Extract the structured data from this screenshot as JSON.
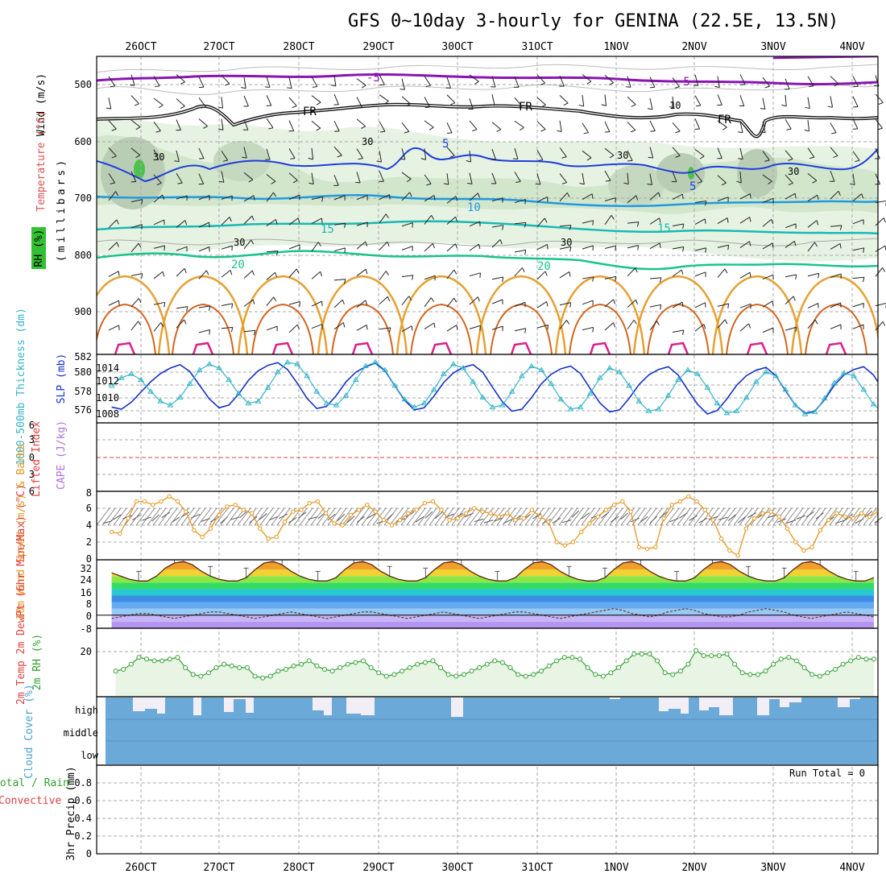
{
  "title": "GFS 0~10day 3-hourly for GENINA (22.5E, 13.5N)",
  "dates": [
    "26OCT",
    "27OCT",
    "28OCT",
    "29OCT",
    "30OCT",
    "31OCT",
    "1NOV",
    "2NOV",
    "3NOV",
    "4NOV"
  ],
  "colors": {
    "frame": "#000000",
    "purple": "#8a14b4",
    "blue": "#1e3fdc",
    "lightblue": "#1e9be0",
    "teal": "#19b9b4",
    "green20": "#19c38c",
    "orange": "#e6a032",
    "darkorange": "#d2641e",
    "magenta": "#dc1e8c",
    "cyan": "#32b4c8",
    "slpblue": "#1432c8",
    "windorange": "#e6961e",
    "rh": "#32a032",
    "cloud": "#6aa9d8",
    "cloudhigh": "#f2eef6"
  },
  "panels": {
    "profile": {
      "ylabel_wind": "Wind (m/s)",
      "ylabel_temp": "Temperature (°C)",
      "ylabel_rh": "RH (%)",
      "ylabel_units": "(millibars)",
      "ticks": [
        "500",
        "600",
        "700",
        "800",
        "900"
      ],
      "contour_labels": [
        "-5",
        "-5",
        "FR",
        "FR",
        "FR",
        "5",
        "5",
        "10",
        "15",
        "15",
        "20",
        "20",
        "30",
        "30",
        "30",
        "10",
        "30",
        "30",
        "30"
      ]
    },
    "slp": {
      "ylabel_thk": "1000-500mb Thickness (dm)",
      "ylabel_slp": "SLP (mb)",
      "ticks_left": [
        "582",
        "580",
        "578",
        "576"
      ],
      "ticks_right": [
        "1014",
        "1012",
        "1010",
        "1008"
      ]
    },
    "cape": {
      "ylabel_li": "Lifted Index",
      "ylabel_cape": "CAPE (J/kg)",
      "ticks": [
        "6",
        "3",
        "0",
        "3",
        "6"
      ]
    },
    "wind10": {
      "ylabel": "10m Wind Speed (m/s) & Barbs",
      "ticks": [
        "8",
        "6",
        "4",
        "2",
        "0"
      ]
    },
    "temp2m": {
      "ylabel": "2m Temp 2m DewPt (6hr Min/Max) (°C)",
      "ticks": [
        "32",
        "24",
        "16",
        "8",
        "0",
        "-8"
      ]
    },
    "rh2m": {
      "ylabel": "2m RH (%)",
      "ticks": [
        "20"
      ]
    },
    "cloud": {
      "ylabel": "Cloud Cover (%)",
      "levels": [
        "high",
        "middle",
        "low"
      ]
    },
    "precip": {
      "ylabel_total": "Total / Rain",
      "ylabel_conv": "Convective",
      "ylabel_units": "3hr Precip (mm)",
      "ticks": [
        "0.8",
        "0.6",
        "0.4",
        "0.2",
        "0"
      ],
      "run_total": "Run Total = 0"
    }
  },
  "chart_data": [
    {
      "type": "line",
      "title": "GFS 0~10day 3-hourly for GENINA (22.5E, 13.5N)",
      "panel": "sea level pressure and 1000-500mb thickness",
      "x_start": "25OCT 15Z",
      "x_step_hours": 3,
      "series": [
        {
          "name": "SLP (mb)",
          "values": [
            1008.3,
            1008.0,
            1009.0,
            1010.5,
            1012.0,
            1013.2,
            1014.0,
            1014.5,
            1013.5,
            1011.5,
            1009.5,
            1008.2,
            1008.6,
            1010.2,
            1012.2,
            1013.6,
            1014.4,
            1014.8,
            1013.8,
            1011.8,
            1009.6,
            1008.1,
            1008.4,
            1010.0,
            1012.0,
            1013.4,
            1014.2,
            1014.7,
            1013.6,
            1011.4,
            1009.3,
            1007.9,
            1008.2,
            1009.9,
            1011.9,
            1013.3,
            1014.1,
            1014.5,
            1013.4,
            1011.2,
            1009.1,
            1007.7,
            1008.0,
            1009.7,
            1011.7,
            1013.1,
            1013.9,
            1014.3,
            1013.2,
            1011.0,
            1008.9,
            1007.6,
            1007.9,
            1009.6,
            1011.6,
            1013.0,
            1013.8,
            1014.2,
            1013.0,
            1010.8,
            1008.7,
            1007.3,
            1007.8,
            1009.5,
            1011.5,
            1012.9,
            1013.7,
            1014.1,
            1012.9,
            1010.7,
            1008.6,
            1007.4,
            1007.7,
            1009.4,
            1011.5,
            1013.0,
            1013.8,
            1014.2,
            1013.0,
            1010.8,
            1008.7,
            1007.5,
            1007.9,
            1009.6,
            1011.8,
            1013.3,
            1014.1,
            1014.6
          ]
        },
        {
          "name": "1000-500mb Thickness (dm)",
          "values": [
            578.8,
            579.6,
            580.0,
            579.4,
            578.2,
            577.2,
            576.8,
            577.6,
            579.0,
            580.4,
            581.0,
            580.6,
            579.4,
            578.0,
            577.0,
            577.2,
            578.6,
            580.2,
            581.2,
            581.0,
            579.8,
            578.2,
            577.0,
            576.8,
            577.8,
            579.4,
            580.8,
            581.2,
            580.4,
            578.8,
            577.4,
            576.6,
            577.0,
            578.4,
            580.0,
            581.0,
            580.6,
            579.2,
            577.6,
            576.6,
            576.8,
            578.2,
            579.8,
            580.8,
            580.4,
            579.0,
            577.4,
            576.4,
            576.6,
            578.0,
            579.6,
            580.6,
            580.2,
            578.8,
            577.2,
            576.2,
            576.4,
            577.8,
            579.4,
            580.4,
            580.0,
            578.6,
            577.0,
            576.0,
            576.2,
            577.6,
            579.2,
            580.2,
            579.8,
            578.4,
            576.8,
            575.9,
            576.1,
            577.5,
            579.1,
            580.1,
            579.8,
            578.4,
            576.9,
            576.0,
            576.3,
            577.7,
            579.3,
            580.3,
            579.9,
            578.6,
            577.1,
            576.3
          ]
        }
      ],
      "ylim": [
        575,
        582
      ]
    },
    {
      "type": "line",
      "panel": "10m wind speed",
      "series": [
        {
          "name": "10m Wind Speed (m/s)",
          "values": [
            3.2,
            3.0,
            4.8,
            6.8,
            6.8,
            6.4,
            6.8,
            7.4,
            6.8,
            5.6,
            3.4,
            2.6,
            3.6,
            5.2,
            6.2,
            6.4,
            5.8,
            5.4,
            3.6,
            2.4,
            2.6,
            4.4,
            5.6,
            5.8,
            6.6,
            6.8,
            5.4,
            4.2,
            4.0,
            5.2,
            5.8,
            6.4,
            5.6,
            4.6,
            4.0,
            4.6,
            5.4,
            5.8,
            6.6,
            6.8,
            5.8,
            4.6,
            4.8,
            5.4,
            6.0,
            5.6,
            5.4,
            5.0,
            5.4,
            4.6,
            4.8,
            5.8,
            5.0,
            4.4,
            2.0,
            1.6,
            2.0,
            3.2,
            4.2,
            5.0,
            5.8,
            6.4,
            6.8,
            5.6,
            1.4,
            1.2,
            1.4,
            4.8,
            6.4,
            6.8,
            7.4,
            6.8,
            5.8,
            4.6,
            2.4,
            1.0,
            0.4,
            3.6,
            4.8,
            5.4,
            5.6,
            5.0,
            3.6,
            2.0,
            1.0,
            1.4,
            3.4,
            4.6,
            5.4,
            5.0,
            4.8,
            5.4,
            5.0,
            5.6
          ]
        }
      ],
      "ylim": [
        0,
        8
      ]
    },
    {
      "type": "area",
      "panel": "2m temperature",
      "series": [
        {
          "name": "2m Temp (°C)",
          "values": [
            26,
            24,
            22,
            21,
            21,
            24,
            29,
            32,
            33,
            31,
            27,
            24,
            22,
            21,
            21,
            23,
            28,
            32,
            33,
            31,
            27,
            24,
            22,
            21,
            21,
            23,
            28,
            32,
            33,
            31,
            27,
            24,
            22,
            21,
            21,
            23,
            28,
            32,
            33,
            31,
            27,
            24,
            22,
            21,
            21,
            23,
            28,
            32,
            33,
            31,
            27,
            24,
            22,
            21,
            21,
            23,
            28,
            32,
            33,
            31,
            27,
            24,
            22,
            21,
            21,
            23,
            28,
            32,
            33,
            31,
            27,
            24,
            22,
            21,
            21,
            23,
            28,
            32,
            33,
            31,
            27,
            24,
            22,
            21,
            21,
            23
          ]
        },
        {
          "name": "2m DewPt (°C)",
          "values": [
            -2,
            -1,
            0,
            1,
            1,
            0,
            -1,
            -2,
            -1,
            0,
            1,
            2,
            2,
            1,
            0,
            -1,
            -2,
            -1,
            0,
            1,
            2,
            1,
            0,
            -1,
            -2,
            -1,
            0,
            1,
            2,
            2,
            1,
            0,
            -1,
            -2,
            -1,
            0,
            1,
            2,
            1,
            0,
            -1,
            -2,
            -1,
            0,
            1,
            2,
            2,
            1,
            0,
            -1,
            -2,
            -1,
            0,
            1,
            2,
            3,
            4,
            3,
            1,
            0,
            -1,
            0,
            2,
            3,
            4,
            3,
            1,
            0,
            -1,
            -1,
            0,
            2,
            3,
            4,
            3,
            2,
            0,
            -1,
            -2,
            -1,
            0,
            1,
            2,
            1,
            0,
            -1
          ]
        }
      ],
      "ylim": [
        -8,
        34
      ]
    },
    {
      "type": "area",
      "panel": "2m relative humidity",
      "series": [
        {
          "name": "2m RH (%)",
          "values": [
            15,
            16,
            19,
            23,
            22,
            21,
            21,
            22,
            23,
            17,
            13,
            12,
            14,
            17,
            19,
            18,
            17,
            17,
            12,
            11,
            12,
            15,
            16,
            18,
            19,
            21,
            18,
            16,
            15,
            17,
            19,
            20,
            21,
            17,
            14,
            12,
            13,
            15,
            17,
            19,
            20,
            21,
            17,
            13,
            12,
            13,
            15,
            17,
            19,
            21,
            20,
            17,
            13,
            12,
            13,
            15,
            18,
            21,
            23,
            23,
            22,
            17,
            13,
            12,
            14,
            17,
            21,
            25,
            25,
            25,
            21,
            14,
            13,
            15,
            19,
            27,
            24,
            24,
            24,
            25,
            19,
            14,
            13,
            13,
            15,
            19,
            22,
            23,
            21,
            17,
            13,
            12,
            14,
            16,
            19,
            21,
            23,
            22,
            22
          ]
        }
      ],
      "ylim": [
        0,
        40
      ]
    },
    {
      "type": "bar",
      "panel": "3hr precipitation",
      "series": [
        {
          "name": "3hr Precip (mm)",
          "values": []
        }
      ],
      "ylim": [
        0,
        1.0
      ]
    }
  ]
}
